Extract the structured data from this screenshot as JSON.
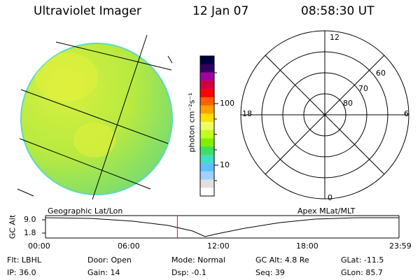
{
  "header": {
    "title": "Ultraviolet Imager",
    "date": "12 Jan 07",
    "time": "08:58:30 UT"
  },
  "colorbar": {
    "unit_label": "photon cm⁻²s⁻¹",
    "tick_100": "100",
    "tick_10": "10",
    "colors": [
      "#000040",
      "#300060",
      "#a000a0",
      "#d00040",
      "#ff0000",
      "#ff6000",
      "#ffa000",
      "#ffe000",
      "#f0ff60",
      "#c0ff20",
      "#80f000",
      "#40e060",
      "#40e0c0",
      "#60c0ff",
      "#a0d0ff",
      "#e0e0e0",
      "#ffffff"
    ]
  },
  "polar_plot": {
    "mlt_12": "12",
    "mlt_18": "18",
    "mlt_6": "6",
    "mlt_0": "0",
    "lat_60": "60",
    "lat_70": "70",
    "lat_80": "80"
  },
  "timeline": {
    "left_label": "Geographic Lat/Lon",
    "right_label": "Apex MLat/MLT",
    "y_axis_label": "GC Alt",
    "y_top": "9.0",
    "y_bottom": "1.8",
    "ticks": [
      "00:00",
      "06:00",
      "12:00",
      "18:00",
      "23:59"
    ],
    "current_time_fraction": 0.373,
    "cursor_color": "#ff0000"
  },
  "info": {
    "flt": "Flt: LBHL",
    "ip": "IP: 36.0",
    "door": "Door: Open",
    "gain": "Gain: 14",
    "mode": "Mode: Normal",
    "dsp": "Dsp:   -0.1",
    "gc_alt": "GC Alt: 4.8 Re",
    "seq": "Seq: 39",
    "glat": "GLat: -11.5",
    "glon": "GLon:  85.7"
  }
}
